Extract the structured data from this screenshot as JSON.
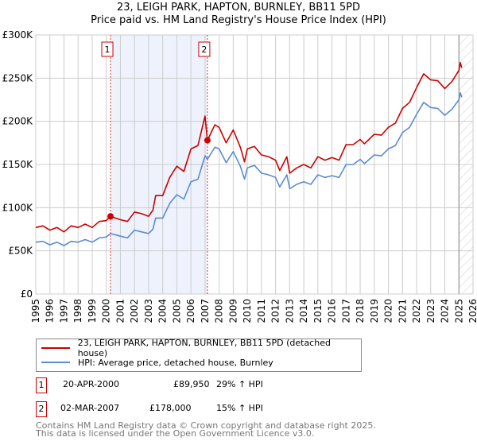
{
  "chart_data": {
    "type": "line",
    "title": "23, LEIGH PARK, HAPTON, BURNLEY, BB11 5PD",
    "subtitle": "Price paid vs. HM Land Registry's House Price Index (HPI)",
    "xlim": [
      1995,
      2026
    ],
    "ylim": [
      0,
      300000
    ],
    "grid": true,
    "x_ticks": [
      "1995",
      "1996",
      "1997",
      "1998",
      "1999",
      "2000",
      "2001",
      "2002",
      "2003",
      "2004",
      "2005",
      "2006",
      "2007",
      "2008",
      "2009",
      "2010",
      "2011",
      "2012",
      "2013",
      "2014",
      "2015",
      "2016",
      "2017",
      "2018",
      "2019",
      "2020",
      "2021",
      "2022",
      "2023",
      "2024",
      "2025",
      "2026"
    ],
    "y_ticks": [
      {
        "v": 0,
        "label": "£0"
      },
      {
        "v": 50000,
        "label": "£50K"
      },
      {
        "v": 100000,
        "label": "£100K"
      },
      {
        "v": 150000,
        "label": "£150K"
      },
      {
        "v": 200000,
        "label": "£200K"
      },
      {
        "v": 250000,
        "label": "£250K"
      },
      {
        "v": 300000,
        "label": "£300K"
      }
    ],
    "x": [
      1995,
      1995.5,
      1996,
      1996.5,
      1997,
      1997.5,
      1998,
      1998.5,
      1999,
      1999.5,
      2000,
      2000.3,
      2001,
      2001.5,
      2002,
      2002.5,
      2003,
      2003.3,
      2003.5,
      2004,
      2004.5,
      2005,
      2005.5,
      2006,
      2006.5,
      2007,
      2007.17,
      2007.7,
      2008,
      2008.5,
      2009,
      2009.5,
      2009.8,
      2010,
      2010.5,
      2011,
      2011.5,
      2012,
      2012.3,
      2012.8,
      2013,
      2013.5,
      2014,
      2014.5,
      2015,
      2015.5,
      2016,
      2016.5,
      2017,
      2017.5,
      2018,
      2018.3,
      2019,
      2019.5,
      2020,
      2020.5,
      2021,
      2021.5,
      2022,
      2022.5,
      2023,
      2023.5,
      2024,
      2024.5,
      2025,
      2025.1,
      2025.2
    ],
    "series": [
      {
        "name": "23, LEIGH PARK, HAPTON, BURNLEY, BB11 5PD (detached house)",
        "color": "#cc0000",
        "values": [
          77,
          79,
          74,
          77,
          72,
          79,
          77,
          81,
          77,
          84,
          85,
          90,
          86,
          84,
          95,
          93,
          90,
          97,
          114,
          114,
          135,
          148,
          142,
          168,
          172,
          206,
          178,
          196,
          193,
          175,
          190,
          170,
          153,
          168,
          171,
          161,
          159,
          155,
          143,
          159,
          140,
          146,
          150,
          146,
          159,
          155,
          158,
          155,
          173,
          173,
          179,
          174,
          185,
          184,
          193,
          198,
          215,
          222,
          239,
          255,
          248,
          247,
          238,
          246,
          259,
          268,
          262
        ]
      },
      {
        "name": "HPI: Average price, detached house, Burnley",
        "color": "#5b8bd0",
        "values": [
          60,
          61,
          57,
          60,
          56,
          61,
          60,
          63,
          60,
          65,
          66,
          70,
          67,
          65,
          74,
          72,
          70,
          75,
          88,
          88,
          105,
          115,
          110,
          130,
          133,
          160,
          156,
          170,
          168,
          152,
          165,
          148,
          133,
          146,
          149,
          140,
          138,
          135,
          124,
          138,
          122,
          127,
          130,
          127,
          138,
          135,
          137,
          135,
          150,
          150,
          156,
          151,
          161,
          160,
          168,
          172,
          187,
          193,
          208,
          222,
          216,
          215,
          207,
          214,
          225,
          233,
          228
        ]
      }
    ],
    "value_unit": "thousands GBP",
    "sales": [
      {
        "id": "1",
        "date": "20-APR-2000",
        "x": 2000.3,
        "price": "£89,950",
        "price_value": 89950,
        "hpi": "29% ↑ HPI"
      },
      {
        "id": "2",
        "date": "02-MAR-2007",
        "x": 2007.17,
        "price": "£178,000",
        "price_value": 178000,
        "hpi": "15% ↑ HPI"
      }
    ],
    "forecast_start": 2025.0
  },
  "footer": {
    "line1": "Contains HM Land Registry data © Crown copyright and database right 2025.",
    "line2": "This data is licensed under the Open Government Licence v3.0."
  }
}
